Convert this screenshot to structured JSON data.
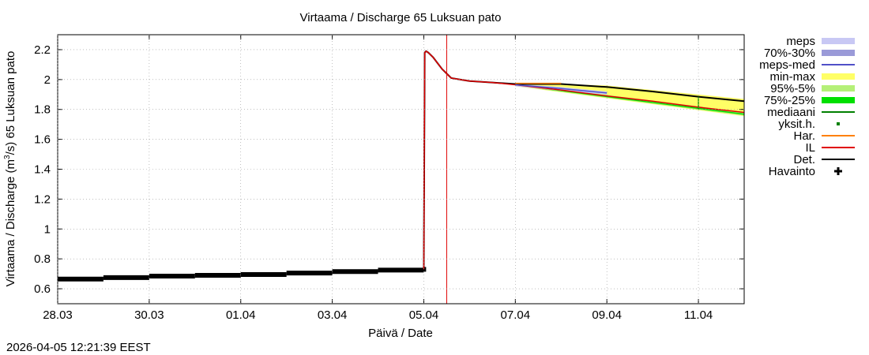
{
  "chart_data": {
    "type": "line",
    "title": "Virtaama / Discharge  65 Luksuan pato",
    "xlabel": "Päivä / Date",
    "ylabel_main": "Virtaama / Discharge (m",
    "ylabel_sup": "3",
    "ylabel_tail": "/s)  65 Luksuan pato",
    "timestamp": "2026-04-05 12:21:39 EEST",
    "x_range_days": [
      0,
      15
    ],
    "ylim": [
      0.5,
      2.3
    ],
    "x_ticks": [
      {
        "day": 0,
        "label": "28.03"
      },
      {
        "day": 2,
        "label": "30.03"
      },
      {
        "day": 4,
        "label": "01.04"
      },
      {
        "day": 6,
        "label": "03.04"
      },
      {
        "day": 8,
        "label": "05.04"
      },
      {
        "day": 10,
        "label": "07.04"
      },
      {
        "day": 12,
        "label": "09.04"
      },
      {
        "day": 14,
        "label": "11.04"
      }
    ],
    "y_ticks": [
      {
        "v": 0.6,
        "label": "0.6"
      },
      {
        "v": 0.8,
        "label": "0.8"
      },
      {
        "v": 1.0,
        "label": "1"
      },
      {
        "v": 1.2,
        "label": "1.2"
      },
      {
        "v": 1.4,
        "label": "1.4"
      },
      {
        "v": 1.6,
        "label": "1.6"
      },
      {
        "v": 1.8,
        "label": "1.8"
      },
      {
        "v": 2.0,
        "label": "2"
      },
      {
        "v": 2.2,
        "label": "2.2"
      }
    ],
    "now_line_day": 8.5,
    "legend": [
      {
        "label": "meps",
        "style": "band",
        "color": "#c8c8f4"
      },
      {
        "label": "70%-30%",
        "style": "band",
        "color": "#9a9ad8"
      },
      {
        "label": "meps-med",
        "style": "line",
        "color": "#5050c8"
      },
      {
        "label": "min-max",
        "style": "band",
        "color": "#ffff66"
      },
      {
        "label": "95%-5%",
        "style": "band",
        "color": "#b4f078"
      },
      {
        "label": "75%-25%",
        "style": "band",
        "color": "#00e000"
      },
      {
        "label": "mediaani",
        "style": "line",
        "color": "#008000"
      },
      {
        "label": "yksit.h.",
        "style": "dot",
        "color": "#008000"
      },
      {
        "label": "Har.",
        "style": "line",
        "color": "#ff8000"
      },
      {
        "label": "IL",
        "style": "line",
        "color": "#e00000"
      },
      {
        "label": "Det.",
        "style": "line",
        "color": "#000000"
      },
      {
        "label": "Havainto",
        "style": "plus",
        "color": "#000000"
      }
    ],
    "observations": [
      {
        "x0": 0.0,
        "x1": 1.0,
        "y": 0.665
      },
      {
        "x0": 1.0,
        "x1": 2.0,
        "y": 0.675
      },
      {
        "x0": 2.0,
        "x1": 3.0,
        "y": 0.685
      },
      {
        "x0": 3.0,
        "x1": 4.0,
        "y": 0.69
      },
      {
        "x0": 4.0,
        "x1": 5.0,
        "y": 0.695
      },
      {
        "x0": 5.0,
        "x1": 6.0,
        "y": 0.705
      },
      {
        "x0": 6.0,
        "x1": 7.0,
        "y": 0.715
      },
      {
        "x0": 7.0,
        "x1": 8.0,
        "y": 0.725
      },
      {
        "x0": 8.0,
        "x1": 8.05,
        "y": 0.73
      }
    ],
    "series_det": {
      "x": [
        8.0,
        8.02,
        8.05,
        8.1,
        8.2,
        8.3,
        8.4,
        8.5,
        8.6,
        8.8,
        9.0,
        9.5,
        10.0,
        11.0,
        12.0,
        13.0,
        14.0,
        15.0
      ],
      "y": [
        0.73,
        2.18,
        2.19,
        2.18,
        2.15,
        2.11,
        2.07,
        2.04,
        2.01,
        2.0,
        1.99,
        1.98,
        1.97,
        1.97,
        1.95,
        1.92,
        1.885,
        1.855
      ]
    },
    "series_il": {
      "x": [
        8.0,
        8.02,
        8.05,
        8.1,
        8.2,
        8.3,
        8.4,
        8.5,
        8.6,
        8.8,
        9.0,
        9.5,
        10.0,
        11.0,
        12.0,
        13.0,
        14.0,
        15.0
      ],
      "y": [
        0.73,
        2.18,
        2.19,
        2.18,
        2.15,
        2.11,
        2.07,
        2.04,
        2.01,
        2.0,
        1.99,
        1.98,
        1.965,
        1.93,
        1.89,
        1.855,
        1.815,
        1.78
      ]
    },
    "series_har": {
      "x": [
        10.0,
        11.0
      ],
      "y": [
        1.975,
        1.975
      ]
    },
    "series_mepsmed": {
      "x": [
        10.0,
        11.0,
        12.0
      ],
      "y": [
        1.965,
        1.94,
        1.91
      ]
    },
    "band_minmax": {
      "x": [
        10.0,
        11.0,
        12.0,
        13.0,
        14.0,
        15.0
      ],
      "lo": [
        1.955,
        1.915,
        1.875,
        1.835,
        1.795,
        1.755
      ],
      "hi": [
        1.975,
        1.97,
        1.96,
        1.93,
        1.9,
        1.87
      ]
    },
    "band_p95": {
      "x": [
        10.0,
        11.0,
        12.0,
        13.0,
        14.0,
        15.0
      ],
      "lo": [
        1.957,
        1.918,
        1.878,
        1.838,
        1.798,
        1.758
      ],
      "hi": [
        1.968,
        1.935,
        1.897,
        1.858,
        1.82,
        1.782
      ]
    },
    "band_p75": {
      "x": [
        10.0,
        11.0,
        12.0,
        13.0,
        14.0,
        15.0
      ],
      "lo": [
        1.96,
        1.922,
        1.882,
        1.843,
        1.803,
        1.764
      ],
      "hi": [
        1.964,
        1.928,
        1.889,
        1.85,
        1.811,
        1.772
      ]
    },
    "band_meps": {
      "x": [
        10.0,
        11.0,
        12.0
      ],
      "lo": [
        1.955,
        1.925,
        1.9
      ],
      "hi": [
        1.97,
        1.95,
        1.92
      ]
    },
    "single_obs": {
      "x": 14.0,
      "y_lo": 1.8,
      "y_hi": 1.885
    }
  }
}
